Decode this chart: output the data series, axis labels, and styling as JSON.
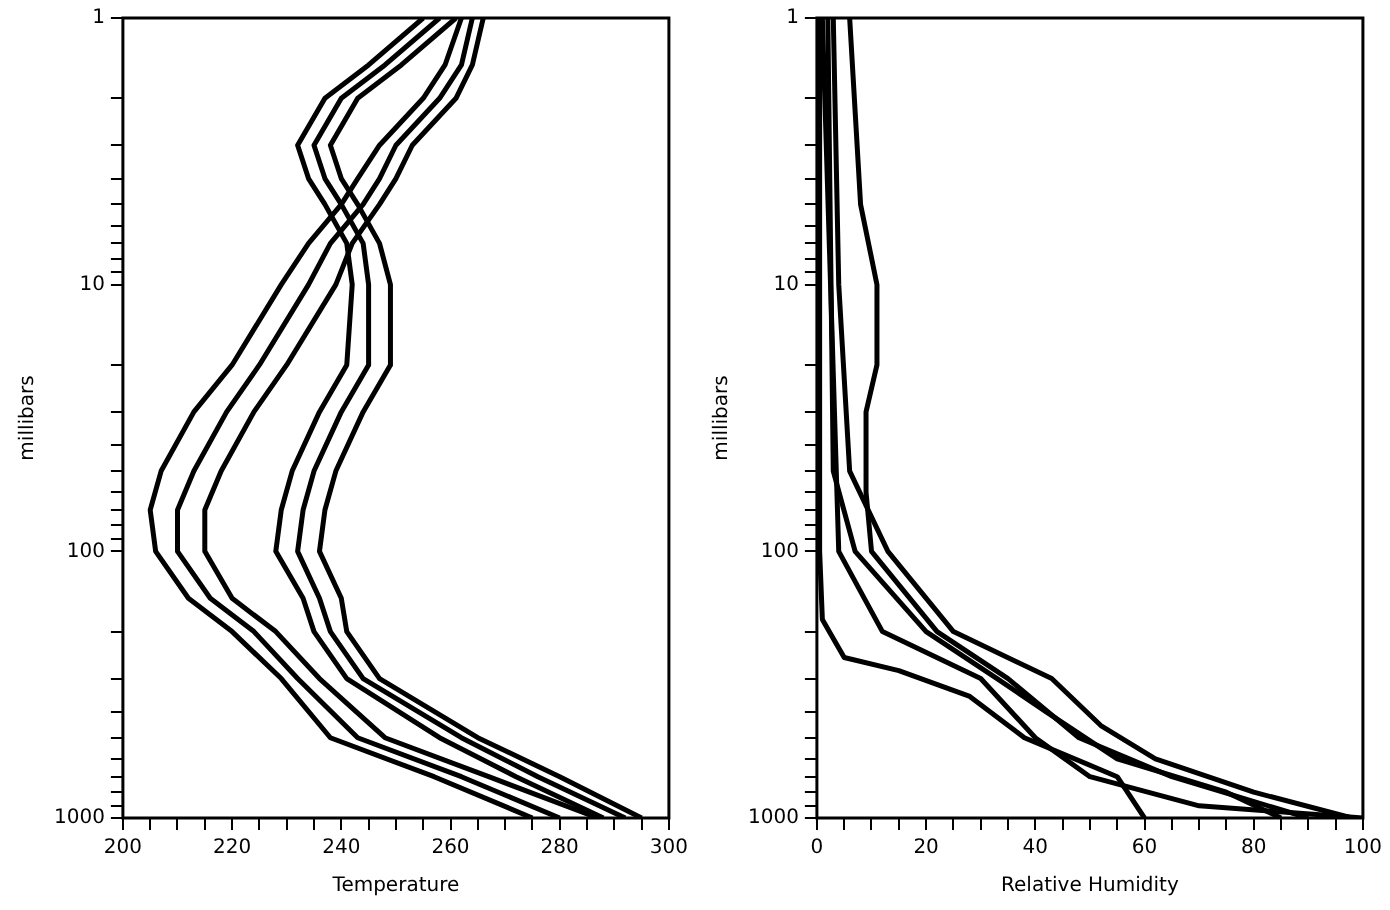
{
  "chart_data": [
    {
      "type": "line",
      "xlabel": "Temperature",
      "ylabel": "millibars",
      "log": "y",
      "marker": "none",
      "grid": false,
      "xlim": [
        200,
        300
      ],
      "xticks": [
        200,
        {
          "value": 205,
          "label": null
        },
        {
          "value": 210,
          "label": null
        },
        {
          "value": 215,
          "label": null
        },
        220,
        {
          "value": 225,
          "label": null
        },
        {
          "value": 230,
          "label": null
        },
        {
          "value": 235,
          "label": null
        },
        240,
        {
          "value": 245,
          "label": null
        },
        {
          "value": 250,
          "label": null
        },
        {
          "value": 255,
          "label": null
        },
        260,
        {
          "value": 265,
          "label": null
        },
        {
          "value": 270,
          "label": null
        },
        {
          "value": 275,
          "label": null
        },
        280,
        {
          "value": 285,
          "label": null
        },
        {
          "value": 290,
          "label": null
        },
        {
          "value": 295,
          "label": null
        },
        300
      ],
      "ylim": [
        1000,
        1
      ],
      "yticks": [
        1,
        {
          "value": 2,
          "label": null
        },
        {
          "value": 3,
          "label": null
        },
        {
          "value": 4,
          "label": null
        },
        {
          "value": 5,
          "label": null
        },
        {
          "value": 6,
          "label": null
        },
        {
          "value": 7,
          "label": null
        },
        {
          "value": 8,
          "label": null
        },
        {
          "value": 9,
          "label": null
        },
        10,
        {
          "value": 20,
          "label": null
        },
        {
          "value": 30,
          "label": null
        },
        {
          "value": 40,
          "label": null
        },
        {
          "value": 50,
          "label": null
        },
        {
          "value": 60,
          "label": null
        },
        {
          "value": 70,
          "label": null
        },
        {
          "value": 80,
          "label": null
        },
        {
          "value": 90,
          "label": null
        },
        100,
        {
          "value": 200,
          "label": null
        },
        {
          "value": 300,
          "label": null
        },
        {
          "value": 400,
          "label": null
        },
        {
          "value": 500,
          "label": null
        },
        {
          "value": 600,
          "label": null
        },
        {
          "value": 700,
          "label": null
        },
        {
          "value": 800,
          "label": null
        },
        {
          "value": 900,
          "label": null
        },
        1000
      ],
      "series": [
        {
          "color": "#000000",
          "x": [
            258,
            248,
            240,
            235,
            237,
            240,
            244,
            245,
            245,
            240,
            235,
            233,
            232,
            236,
            238,
            244,
            262,
            276,
            292
          ],
          "values": [
            1,
            1.5,
            2,
            3,
            4,
            5,
            7,
            10,
            20,
            30,
            50,
            70,
            100,
            150,
            200,
            300,
            500,
            700,
            1000
          ]
        },
        {
          "color": "#000000",
          "x": [
            255,
            245,
            237,
            232,
            234,
            237,
            241,
            242,
            241,
            236,
            231,
            229,
            228,
            233,
            235,
            241,
            258,
            272,
            288
          ],
          "values": [
            1,
            1.5,
            2,
            3,
            4,
            5,
            7,
            10,
            20,
            30,
            50,
            70,
            100,
            150,
            200,
            300,
            500,
            700,
            1000
          ]
        },
        {
          "color": "#000000",
          "x": [
            261,
            251,
            243,
            238,
            240,
            243,
            247,
            249,
            249,
            244,
            239,
            237,
            236,
            240,
            241,
            247,
            265,
            280,
            295
          ],
          "values": [
            1,
            1.5,
            2,
            3,
            4,
            5,
            7,
            10,
            20,
            30,
            50,
            70,
            100,
            150,
            200,
            300,
            500,
            700,
            1000
          ]
        },
        {
          "color": "#000000",
          "x": [
            264,
            262,
            258,
            250,
            247,
            244,
            238,
            234,
            225,
            219,
            213,
            210,
            210,
            216,
            224,
            232,
            243,
            262,
            280
          ],
          "values": [
            1,
            1.5,
            2,
            3,
            4,
            5,
            7,
            10,
            20,
            30,
            50,
            70,
            100,
            150,
            200,
            300,
            500,
            700,
            1000
          ]
        },
        {
          "color": "#000000",
          "x": [
            262,
            259,
            255,
            247,
            243,
            240,
            234,
            229,
            220,
            213,
            207,
            205,
            206,
            212,
            220,
            229,
            238,
            257,
            275
          ],
          "values": [
            1,
            1.5,
            2,
            3,
            4,
            5,
            7,
            10,
            20,
            30,
            50,
            70,
            100,
            150,
            200,
            300,
            500,
            700,
            1000
          ]
        },
        {
          "color": "#000000",
          "x": [
            266,
            264,
            261,
            253,
            250,
            247,
            242,
            239,
            230,
            224,
            218,
            215,
            215,
            220,
            228,
            236,
            248,
            267,
            287
          ],
          "values": [
            1,
            1.5,
            2,
            3,
            4,
            5,
            7,
            10,
            20,
            30,
            50,
            70,
            100,
            150,
            200,
            300,
            500,
            700,
            1000
          ]
        }
      ]
    },
    {
      "type": "line",
      "xlabel": "Relative Humidity",
      "ylabel": "millibars",
      "log": "y",
      "marker": "none",
      "grid": false,
      "xlim": [
        0,
        100
      ],
      "xticks": [
        0,
        {
          "value": 5,
          "label": null
        },
        {
          "value": 10,
          "label": null
        },
        {
          "value": 15,
          "label": null
        },
        20,
        {
          "value": 25,
          "label": null
        },
        {
          "value": 30,
          "label": null
        },
        {
          "value": 35,
          "label": null
        },
        40,
        {
          "value": 45,
          "label": null
        },
        {
          "value": 50,
          "label": null
        },
        {
          "value": 55,
          "label": null
        },
        60,
        {
          "value": 65,
          "label": null
        },
        {
          "value": 70,
          "label": null
        },
        {
          "value": 75,
          "label": null
        },
        80,
        {
          "value": 85,
          "label": null
        },
        {
          "value": 90,
          "label": null
        },
        {
          "value": 95,
          "label": null
        },
        100
      ],
      "ylim": [
        1000,
        1
      ],
      "yticks": [
        1,
        {
          "value": 2,
          "label": null
        },
        {
          "value": 3,
          "label": null
        },
        {
          "value": 4,
          "label": null
        },
        {
          "value": 5,
          "label": null
        },
        {
          "value": 6,
          "label": null
        },
        {
          "value": 7,
          "label": null
        },
        {
          "value": 8,
          "label": null
        },
        {
          "value": 9,
          "label": null
        },
        10,
        {
          "value": 20,
          "label": null
        },
        {
          "value": 30,
          "label": null
        },
        {
          "value": 40,
          "label": null
        },
        {
          "value": 50,
          "label": null
        },
        {
          "value": 60,
          "label": null
        },
        {
          "value": 70,
          "label": null
        },
        {
          "value": 80,
          "label": null
        },
        {
          "value": 90,
          "label": null
        },
        100,
        {
          "value": 200,
          "label": null
        },
        {
          "value": 300,
          "label": null
        },
        {
          "value": 400,
          "label": null
        },
        {
          "value": 500,
          "label": null
        },
        {
          "value": 600,
          "label": null
        },
        {
          "value": 700,
          "label": null
        },
        {
          "value": 800,
          "label": null
        },
        {
          "value": 900,
          "label": null
        },
        1000
      ],
      "series": [
        {
          "color": "#000000",
          "x": [
            0.5,
            0.5,
            1,
            5,
            15,
            28,
            38,
            55,
            60
          ],
          "values": [
            1,
            100,
            180,
            250,
            280,
            350,
            500,
            700,
            1000
          ]
        },
        {
          "color": "#000000",
          "x": [
            2,
            3,
            7,
            20,
            33,
            42,
            55,
            75,
            85
          ],
          "values": [
            1,
            50,
            100,
            200,
            300,
            400,
            600,
            800,
            1000
          ]
        },
        {
          "color": "#000000",
          "x": [
            3,
            4,
            6,
            13,
            25,
            43,
            52,
            62,
            80,
            98
          ],
          "values": [
            1,
            10,
            50,
            100,
            200,
            300,
            450,
            600,
            800,
            1000
          ]
        },
        {
          "color": "#000000",
          "x": [
            6,
            8,
            11,
            11,
            9,
            9,
            10,
            22,
            35,
            48,
            65,
            90
          ],
          "values": [
            1,
            5,
            10,
            20,
            30,
            60,
            100,
            200,
            300,
            500,
            700,
            1000
          ]
        },
        {
          "color": "#000000",
          "x": [
            1,
            4,
            12,
            30,
            40,
            50,
            70,
            100
          ],
          "values": [
            1,
            100,
            200,
            300,
            500,
            700,
            900,
            1000
          ]
        }
      ]
    }
  ]
}
